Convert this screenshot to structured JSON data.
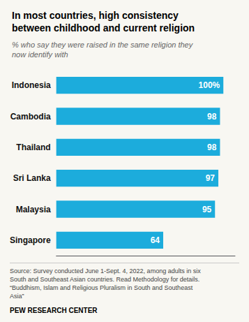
{
  "chart_data": {
    "type": "bar",
    "orientation": "horizontal",
    "title": "In most countries, high consistency\nbetween childhood and current religion",
    "subtitle": "% who say they were raised in the same religion they\nnow identify with",
    "annotations": [
      "Source: Survey conducted June 1-Sept. 4, 2022, among adults in six\nSouth and Southeast Asian countries. Read Methodology for details.\n“Buddhism, Islam and Religious Pluralism in South and Southeast\nAsia”",
      "PEW RESEARCH CENTER"
    ],
    "categories": [
      "Indonesia",
      "Cambodia",
      "Thailand",
      "Sri Lanka",
      "Malaysia",
      "Singapore"
    ],
    "values": [
      100,
      98,
      98,
      97,
      95,
      64
    ],
    "value_labels": [
      "100%",
      "98",
      "98",
      "97",
      "95",
      "64"
    ],
    "color": "#1cacdc",
    "xlim": [
      0,
      107
    ],
    "data_labels": true,
    "tick_labels": "y",
    "grid": false
  }
}
